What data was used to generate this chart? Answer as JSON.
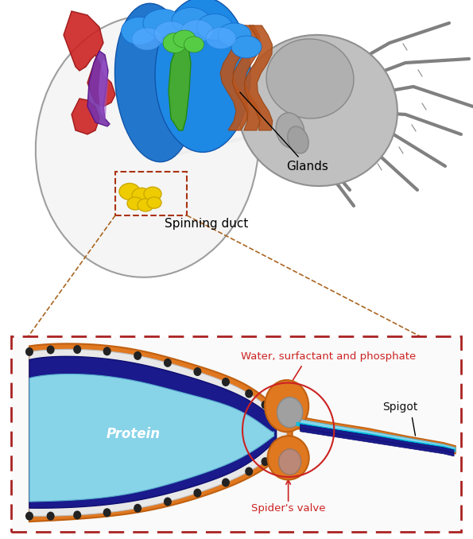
{
  "background_color": "#ffffff",
  "top_panel": {
    "label_glands": "Glands",
    "label_spinning_duct": "Spinning duct",
    "abdomen_fill": "#f5f5f5",
    "abdomen_edge": "#999999",
    "red_gland": "#cc2222",
    "purple_gland": "#7733aa",
    "blue_gland": "#2277cc",
    "green_gland": "#44aa33",
    "brown_gland": "#b85520",
    "yellow_spinneret": "#eecc00",
    "spider_gray": "#aaaaaa",
    "dashed_box_color": "#aa3311",
    "connector_color": "#aa6622"
  },
  "bottom_panel": {
    "border_color": "#aa2222",
    "orange": "#e07820",
    "orange_dark": "#c06010",
    "white_layer": "#e8e8e8",
    "dot_color": "#222222",
    "dark_blue": "#1a1a8c",
    "cyan_light": "#87d3e8",
    "cyan_mid": "#44aacc",
    "gray_valve": "#888888",
    "pinkish": "#cc9999",
    "label_protein": "Protein",
    "label_water": "Water, surfactant and phosphate",
    "label_spigot": "Spigot",
    "label_valve": "Spider's valve",
    "text_red": "#cc2222",
    "text_black": "#111111",
    "text_white": "#ffffff"
  }
}
